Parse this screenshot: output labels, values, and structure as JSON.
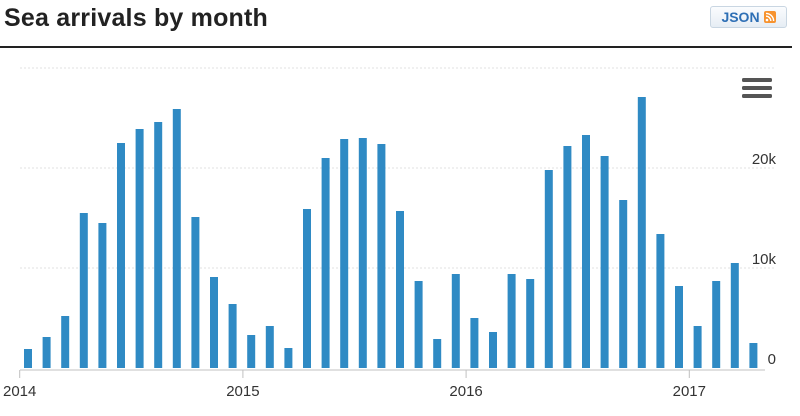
{
  "header": {
    "title": "Sea arrivals by month",
    "json_label": "JSON"
  },
  "icons": {
    "rss": "rss-icon",
    "menu": "hamburger-menu-icon"
  },
  "colors": {
    "bar": "#2f8ac4",
    "gridline": "#e0e0e0",
    "axis_text": "#333333",
    "title_rule": "#222222",
    "json_text": "#2e6fb5",
    "rss": "#f7932f"
  },
  "chart_data": {
    "type": "bar",
    "title": "",
    "xlabel": "",
    "ylabel": "",
    "ylim": [
      0,
      30000
    ],
    "y_ticks": [
      {
        "value": 0,
        "label": "0"
      },
      {
        "value": 10000,
        "label": "10k"
      },
      {
        "value": 20000,
        "label": "20k"
      }
    ],
    "grid": true,
    "y_axis_side": "right",
    "x_ticks": [
      {
        "label": "2014",
        "index": 0
      },
      {
        "label": "2015",
        "index": 12
      },
      {
        "label": "2016",
        "index": 24
      },
      {
        "label": "2017",
        "index": 36
      }
    ],
    "categories": [
      "2014-01",
      "2014-02",
      "2014-03",
      "2014-04",
      "2014-05",
      "2014-06",
      "2014-07",
      "2014-08",
      "2014-09",
      "2014-10",
      "2014-11",
      "2014-12",
      "2015-01",
      "2015-02",
      "2015-03",
      "2015-04",
      "2015-05",
      "2015-06",
      "2015-07",
      "2015-08",
      "2015-09",
      "2015-10",
      "2015-11",
      "2015-12",
      "2016-01",
      "2016-02",
      "2016-03",
      "2016-04",
      "2016-05",
      "2016-06",
      "2016-07",
      "2016-08",
      "2016-09",
      "2016-10",
      "2016-11",
      "2016-12",
      "2017-01",
      "2017-02",
      "2017-03",
      "2017-04"
    ],
    "values": [
      1900,
      3100,
      5200,
      15500,
      14500,
      22500,
      23900,
      24600,
      25900,
      15100,
      9100,
      6400,
      3300,
      4200,
      2000,
      15900,
      21000,
      22900,
      23000,
      22400,
      15700,
      8700,
      2900,
      9400,
      5000,
      3600,
      9400,
      8900,
      19800,
      22200,
      23300,
      21200,
      16800,
      27100,
      13400,
      8200,
      4200,
      8700,
      10500,
      2500
    ]
  }
}
